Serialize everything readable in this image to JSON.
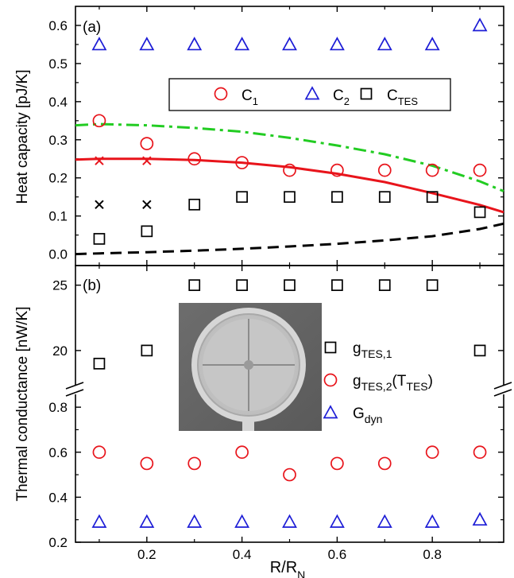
{
  "chart_data": [
    {
      "panel_label": "(a)",
      "type": "scatter",
      "ylabel": "Heat capacity [pJ/K]",
      "xlim": [
        0.05,
        0.95
      ],
      "ylim": [
        -0.03,
        0.65
      ],
      "yticks": [
        "0.0",
        "0.1",
        "0.2",
        "0.3",
        "0.4",
        "0.5",
        "0.6"
      ],
      "legend_position": "upper-middle",
      "series": [
        {
          "name": "C1",
          "marker": "circle",
          "color": "#e8141b",
          "x": [
            0.1,
            0.2,
            0.3,
            0.4,
            0.5,
            0.6,
            0.7,
            0.8,
            0.9
          ],
          "y": [
            0.35,
            0.29,
            0.25,
            0.24,
            0.22,
            0.22,
            0.22,
            0.22,
            0.22
          ]
        },
        {
          "name": "C2",
          "marker": "triangle",
          "color": "#1c1cd6",
          "x": [
            0.1,
            0.2,
            0.3,
            0.4,
            0.5,
            0.6,
            0.7,
            0.8,
            0.9
          ],
          "y": [
            0.55,
            0.55,
            0.55,
            0.55,
            0.55,
            0.55,
            0.55,
            0.55,
            0.6
          ]
        },
        {
          "name": "CTES",
          "marker": "square",
          "color": "#000000",
          "x": [
            0.1,
            0.2,
            0.3,
            0.4,
            0.5,
            0.6,
            0.7,
            0.8,
            0.9
          ],
          "y": [
            0.04,
            0.06,
            0.13,
            0.15,
            0.15,
            0.15,
            0.15,
            0.15,
            0.11
          ]
        },
        {
          "marker": "x",
          "color": "#e8141b",
          "x": [
            0.1,
            0.2
          ],
          "y": [
            0.245,
            0.245
          ]
        },
        {
          "marker": "x",
          "color": "#000000",
          "x": [
            0.1,
            0.2
          ],
          "y": [
            0.13,
            0.13
          ]
        }
      ],
      "curves": [
        {
          "style": "solid",
          "color": "#e8141b",
          "x": [
            0.05,
            0.1,
            0.2,
            0.3,
            0.4,
            0.5,
            0.6,
            0.7,
            0.8,
            0.9,
            0.95
          ],
          "y": [
            0.248,
            0.25,
            0.25,
            0.247,
            0.24,
            0.228,
            0.211,
            0.189,
            0.16,
            0.129,
            0.11
          ]
        },
        {
          "style": "dashdot",
          "color": "#22cc22",
          "x": [
            0.05,
            0.1,
            0.2,
            0.3,
            0.4,
            0.5,
            0.6,
            0.7,
            0.8,
            0.9,
            0.95
          ],
          "y": [
            0.338,
            0.341,
            0.338,
            0.331,
            0.321,
            0.305,
            0.285,
            0.262,
            0.232,
            0.191,
            0.165
          ]
        },
        {
          "style": "dashed",
          "color": "#000000",
          "x": [
            0.05,
            0.1,
            0.2,
            0.3,
            0.4,
            0.5,
            0.6,
            0.7,
            0.8,
            0.9,
            0.95
          ],
          "y": [
            0.0,
            0.002,
            0.005,
            0.009,
            0.014,
            0.02,
            0.027,
            0.036,
            0.047,
            0.066,
            0.08
          ]
        }
      ]
    },
    {
      "panel_label": "(b)",
      "type": "scatter",
      "xlabel": "R/R",
      "xlabel_sub": "N",
      "ylabel": "Thermal conductance [nW/K]",
      "xlim": [
        0.05,
        0.95
      ],
      "xticks": [
        "0.2",
        "0.4",
        "0.6",
        "0.8"
      ],
      "ylim_lower": [
        0.2,
        0.85
      ],
      "ylim_upper": [
        17.5,
        26.5
      ],
      "yticks_lower": [
        "0.2",
        "0.4",
        "0.6",
        "0.8"
      ],
      "yticks_upper": [
        "20",
        "25"
      ],
      "axis_break": true,
      "legend_position": "right",
      "series": [
        {
          "name": "g",
          "name_sub": "TES,1",
          "marker": "square",
          "color": "#000000",
          "x": [
            0.1,
            0.2,
            0.3,
            0.4,
            0.5,
            0.6,
            0.7,
            0.8,
            0.9
          ],
          "y": [
            19,
            20,
            25,
            25,
            25,
            25,
            25,
            25,
            20
          ]
        },
        {
          "name": "g",
          "name_sub": "TES,2",
          "name_suffix": "(T",
          "name_sub2": "TES",
          "name_end": ")",
          "marker": "circle",
          "color": "#e8141b",
          "x": [
            0.1,
            0.2,
            0.3,
            0.4,
            0.5,
            0.6,
            0.7,
            0.8,
            0.9
          ],
          "y": [
            0.6,
            0.55,
            0.55,
            0.6,
            0.5,
            0.55,
            0.55,
            0.6,
            0.6
          ]
        },
        {
          "name": "G",
          "name_sub": "dyn",
          "marker": "triangle",
          "color": "#1c1cd6",
          "x": [
            0.1,
            0.2,
            0.3,
            0.4,
            0.5,
            0.6,
            0.7,
            0.8,
            0.9
          ],
          "y": [
            0.29,
            0.29,
            0.29,
            0.29,
            0.29,
            0.29,
            0.29,
            0.29,
            0.3
          ]
        }
      ]
    }
  ],
  "legend_a": [
    {
      "name": "C",
      "sub": "1",
      "marker": "circle",
      "color": "#e8141b"
    },
    {
      "name": "C",
      "sub": "2",
      "marker": "triangle",
      "color": "#1c1cd6"
    },
    {
      "name": "C",
      "sub": "TES",
      "marker": "square",
      "color": "#000000"
    }
  ]
}
